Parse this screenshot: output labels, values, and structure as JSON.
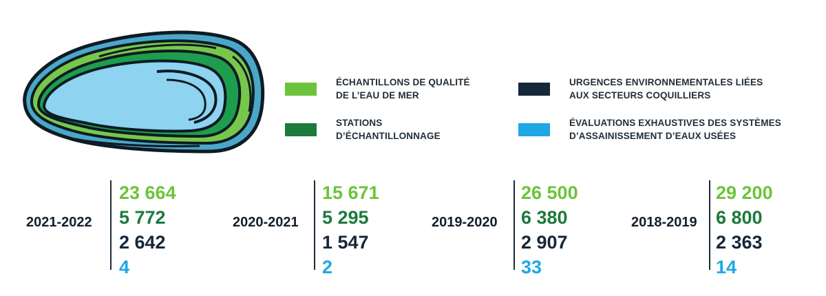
{
  "colors": {
    "light_green": "#6cc43a",
    "dark_green": "#1c7a3c",
    "navy": "#15273a",
    "light_blue": "#1fa8e3"
  },
  "illustration": {
    "icon": "mussel-shell-icon"
  },
  "legend": [
    {
      "id": "samples",
      "label": "ÉCHANTILLONS DE QUALITÉ\nDE L’EAU DE MER",
      "color": "#6cc43a"
    },
    {
      "id": "stations",
      "label": "STATIONS\nD’ÉCHANTILLONNAGE",
      "color": "#1c7a3c"
    },
    {
      "id": "emergencies",
      "label": "URGENCES ENVIRONNEMENTALES LIÉES\nAUX SECTEURS COQUILLIERS",
      "color": "#15273a"
    },
    {
      "id": "evaluations",
      "label": "ÉVALUATIONS  EXHAUSTIVES DES SYSTÈMES\nD’ASSAINISSEMENT D’EAUX USÉES",
      "color": "#1fa8e3"
    }
  ],
  "years": [
    {
      "label": "2021-2022",
      "values": [
        "23 664",
        "5 772",
        "2 642",
        "4"
      ]
    },
    {
      "label": "2020-2021",
      "values": [
        "15 671",
        "5 295",
        "1 547",
        "2"
      ]
    },
    {
      "label": "2019-2020",
      "values": [
        "26 500",
        "6 380",
        "2 907",
        "33"
      ]
    },
    {
      "label": "2018-2019",
      "values": [
        "29 200",
        "6 800",
        "2 363",
        "14"
      ]
    }
  ]
}
